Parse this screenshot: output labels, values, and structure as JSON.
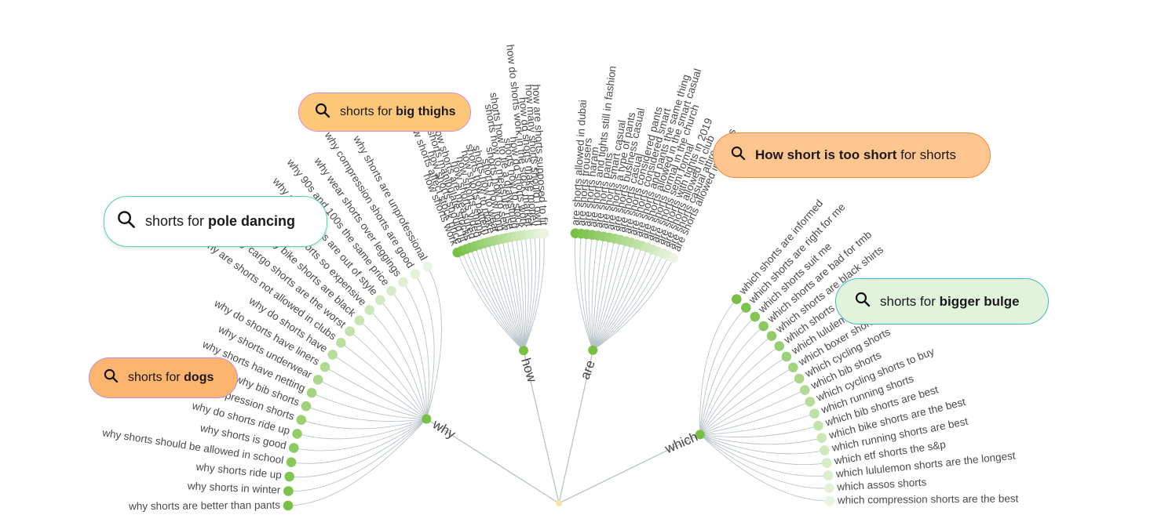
{
  "root_keyword": "shorts",
  "colors": {
    "node_dark": "#77c043",
    "node_light": "#eaf4e0",
    "link": "#b8c3c8"
  },
  "branches": [
    {
      "name": "why",
      "items": [
        "why shorts are better than pants",
        "why shorts in winter",
        "why shorts ride up",
        "why shorts should be allowed in school",
        "why shorts is good",
        "why do shorts ride up",
        "why compression shorts",
        "why bib shorts",
        "why shorts have netting",
        "why shorts underwear",
        "why do shorts have liners",
        "why do shorts have",
        "why are shorts not allowed in clubs",
        "why cargo shorts are the worst",
        "why bike shorts are black",
        "why are shorts so expensive",
        "why cargo shorts are out of style",
        "why 90s and 100s the same price",
        "why wear shorts over leggings",
        "why compression shorts are good",
        "why shorts are unprofessional"
      ]
    },
    {
      "name": "how",
      "items": [
        "how shorts work",
        "how shorts affect stock price",
        "how shorts should fit",
        "how shorts manipulate stocks",
        "how shorts are measured",
        "how shorts video",
        "how shorts shrink",
        "how shorts pattern",
        "shorts how to make",
        "shorts how to wear",
        "shorts how long",
        "shorts how to sew",
        "shorts how to measure rise",
        "shorts how to tie a drawstring",
        "shorts how to stock",
        "how do shorts work",
        "how do shorts work in the stock market",
        "how do shorts make money",
        "how many shorts should i own",
        "how are shorts supposed to fit"
      ]
    },
    {
      "name": "are",
      "items": [
        "are shorts allowed in dubai",
        "are shorts trousers",
        "are shorts haram",
        "are shorts and tights still in fashion",
        "are shorts pants",
        "are shorts smart casual",
        "are shorts a type of pants",
        "are shorts business casual",
        "are shorts casual",
        "are shorts considered pants",
        "are shorts considered smart",
        "are shorts and pants the same thing",
        "are shorts allowed in the smart casual",
        "are shorts formal in the church",
        "are shorts semi formal",
        "are shorts with tights in 2019",
        "are shorts allowed in club",
        "are shorts casual attire",
        "are shorts allowed in angkas"
      ]
    },
    {
      "name": "which",
      "items": [
        "which shorts are informed",
        "which shorts are right for me",
        "which shorts suit me",
        "which shorts are bad for tmb",
        "which shorts are black shirts",
        "which shorts are best",
        "which lululemon shorts",
        "which boxer shorts are best",
        "which cycling shorts",
        "which bib shorts",
        "which cycling shorts to buy",
        "which running shorts",
        "which bib shorts are best",
        "which bike shorts are the best",
        "which running shorts are best",
        "which etf shorts the s&p",
        "which lululemon shorts are the longest",
        "which assos shorts",
        "which compression shorts are the best"
      ]
    }
  ],
  "pills": {
    "big_thighs": {
      "prefix": "shorts for ",
      "bold": "big thighs",
      "suffix": ""
    },
    "pole": {
      "prefix": "shorts for ",
      "bold": "pole dancing",
      "suffix": ""
    },
    "short": {
      "prefix": "",
      "bold": "How short is too short",
      "suffix": " for shorts"
    },
    "bulge": {
      "prefix": "shorts for ",
      "bold": "bigger bulge",
      "suffix": ""
    },
    "dogs": {
      "prefix": "shorts for ",
      "bold": "dogs",
      "suffix": ""
    }
  },
  "icons": {
    "search": "magnifier-icon"
  }
}
